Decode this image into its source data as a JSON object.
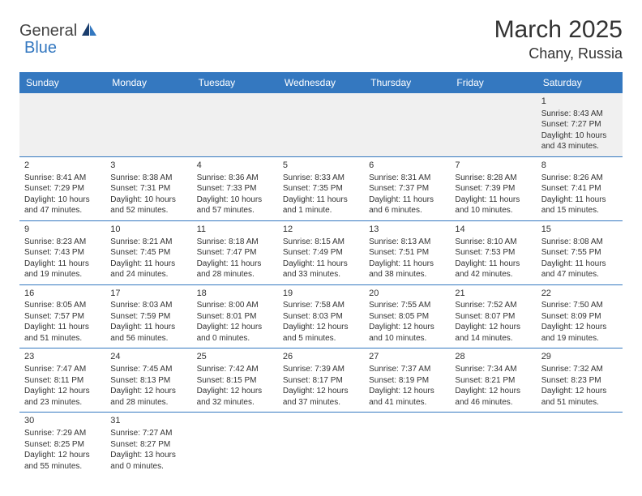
{
  "logo": {
    "general": "General",
    "blue": "Blue"
  },
  "title": "March 2025",
  "location": "Chany, Russia",
  "colors": {
    "header_bg": "#3478c0",
    "header_text": "#ffffff",
    "text": "#333333",
    "row_border": "#3478c0",
    "first_row_bg": "#f0f0f0"
  },
  "days_of_week": [
    "Sunday",
    "Monday",
    "Tuesday",
    "Wednesday",
    "Thursday",
    "Friday",
    "Saturday"
  ],
  "weeks": [
    [
      null,
      null,
      null,
      null,
      null,
      null,
      {
        "n": "1",
        "sr": "Sunrise: 8:43 AM",
        "ss": "Sunset: 7:27 PM",
        "dl1": "Daylight: 10 hours",
        "dl2": "and 43 minutes."
      }
    ],
    [
      {
        "n": "2",
        "sr": "Sunrise: 8:41 AM",
        "ss": "Sunset: 7:29 PM",
        "dl1": "Daylight: 10 hours",
        "dl2": "and 47 minutes."
      },
      {
        "n": "3",
        "sr": "Sunrise: 8:38 AM",
        "ss": "Sunset: 7:31 PM",
        "dl1": "Daylight: 10 hours",
        "dl2": "and 52 minutes."
      },
      {
        "n": "4",
        "sr": "Sunrise: 8:36 AM",
        "ss": "Sunset: 7:33 PM",
        "dl1": "Daylight: 10 hours",
        "dl2": "and 57 minutes."
      },
      {
        "n": "5",
        "sr": "Sunrise: 8:33 AM",
        "ss": "Sunset: 7:35 PM",
        "dl1": "Daylight: 11 hours",
        "dl2": "and 1 minute."
      },
      {
        "n": "6",
        "sr": "Sunrise: 8:31 AM",
        "ss": "Sunset: 7:37 PM",
        "dl1": "Daylight: 11 hours",
        "dl2": "and 6 minutes."
      },
      {
        "n": "7",
        "sr": "Sunrise: 8:28 AM",
        "ss": "Sunset: 7:39 PM",
        "dl1": "Daylight: 11 hours",
        "dl2": "and 10 minutes."
      },
      {
        "n": "8",
        "sr": "Sunrise: 8:26 AM",
        "ss": "Sunset: 7:41 PM",
        "dl1": "Daylight: 11 hours",
        "dl2": "and 15 minutes."
      }
    ],
    [
      {
        "n": "9",
        "sr": "Sunrise: 8:23 AM",
        "ss": "Sunset: 7:43 PM",
        "dl1": "Daylight: 11 hours",
        "dl2": "and 19 minutes."
      },
      {
        "n": "10",
        "sr": "Sunrise: 8:21 AM",
        "ss": "Sunset: 7:45 PM",
        "dl1": "Daylight: 11 hours",
        "dl2": "and 24 minutes."
      },
      {
        "n": "11",
        "sr": "Sunrise: 8:18 AM",
        "ss": "Sunset: 7:47 PM",
        "dl1": "Daylight: 11 hours",
        "dl2": "and 28 minutes."
      },
      {
        "n": "12",
        "sr": "Sunrise: 8:15 AM",
        "ss": "Sunset: 7:49 PM",
        "dl1": "Daylight: 11 hours",
        "dl2": "and 33 minutes."
      },
      {
        "n": "13",
        "sr": "Sunrise: 8:13 AM",
        "ss": "Sunset: 7:51 PM",
        "dl1": "Daylight: 11 hours",
        "dl2": "and 38 minutes."
      },
      {
        "n": "14",
        "sr": "Sunrise: 8:10 AM",
        "ss": "Sunset: 7:53 PM",
        "dl1": "Daylight: 11 hours",
        "dl2": "and 42 minutes."
      },
      {
        "n": "15",
        "sr": "Sunrise: 8:08 AM",
        "ss": "Sunset: 7:55 PM",
        "dl1": "Daylight: 11 hours",
        "dl2": "and 47 minutes."
      }
    ],
    [
      {
        "n": "16",
        "sr": "Sunrise: 8:05 AM",
        "ss": "Sunset: 7:57 PM",
        "dl1": "Daylight: 11 hours",
        "dl2": "and 51 minutes."
      },
      {
        "n": "17",
        "sr": "Sunrise: 8:03 AM",
        "ss": "Sunset: 7:59 PM",
        "dl1": "Daylight: 11 hours",
        "dl2": "and 56 minutes."
      },
      {
        "n": "18",
        "sr": "Sunrise: 8:00 AM",
        "ss": "Sunset: 8:01 PM",
        "dl1": "Daylight: 12 hours",
        "dl2": "and 0 minutes."
      },
      {
        "n": "19",
        "sr": "Sunrise: 7:58 AM",
        "ss": "Sunset: 8:03 PM",
        "dl1": "Daylight: 12 hours",
        "dl2": "and 5 minutes."
      },
      {
        "n": "20",
        "sr": "Sunrise: 7:55 AM",
        "ss": "Sunset: 8:05 PM",
        "dl1": "Daylight: 12 hours",
        "dl2": "and 10 minutes."
      },
      {
        "n": "21",
        "sr": "Sunrise: 7:52 AM",
        "ss": "Sunset: 8:07 PM",
        "dl1": "Daylight: 12 hours",
        "dl2": "and 14 minutes."
      },
      {
        "n": "22",
        "sr": "Sunrise: 7:50 AM",
        "ss": "Sunset: 8:09 PM",
        "dl1": "Daylight: 12 hours",
        "dl2": "and 19 minutes."
      }
    ],
    [
      {
        "n": "23",
        "sr": "Sunrise: 7:47 AM",
        "ss": "Sunset: 8:11 PM",
        "dl1": "Daylight: 12 hours",
        "dl2": "and 23 minutes."
      },
      {
        "n": "24",
        "sr": "Sunrise: 7:45 AM",
        "ss": "Sunset: 8:13 PM",
        "dl1": "Daylight: 12 hours",
        "dl2": "and 28 minutes."
      },
      {
        "n": "25",
        "sr": "Sunrise: 7:42 AM",
        "ss": "Sunset: 8:15 PM",
        "dl1": "Daylight: 12 hours",
        "dl2": "and 32 minutes."
      },
      {
        "n": "26",
        "sr": "Sunrise: 7:39 AM",
        "ss": "Sunset: 8:17 PM",
        "dl1": "Daylight: 12 hours",
        "dl2": "and 37 minutes."
      },
      {
        "n": "27",
        "sr": "Sunrise: 7:37 AM",
        "ss": "Sunset: 8:19 PM",
        "dl1": "Daylight: 12 hours",
        "dl2": "and 41 minutes."
      },
      {
        "n": "28",
        "sr": "Sunrise: 7:34 AM",
        "ss": "Sunset: 8:21 PM",
        "dl1": "Daylight: 12 hours",
        "dl2": "and 46 minutes."
      },
      {
        "n": "29",
        "sr": "Sunrise: 7:32 AM",
        "ss": "Sunset: 8:23 PM",
        "dl1": "Daylight: 12 hours",
        "dl2": "and 51 minutes."
      }
    ],
    [
      {
        "n": "30",
        "sr": "Sunrise: 7:29 AM",
        "ss": "Sunset: 8:25 PM",
        "dl1": "Daylight: 12 hours",
        "dl2": "and 55 minutes."
      },
      {
        "n": "31",
        "sr": "Sunrise: 7:27 AM",
        "ss": "Sunset: 8:27 PM",
        "dl1": "Daylight: 13 hours",
        "dl2": "and 0 minutes."
      },
      null,
      null,
      null,
      null,
      null
    ]
  ]
}
